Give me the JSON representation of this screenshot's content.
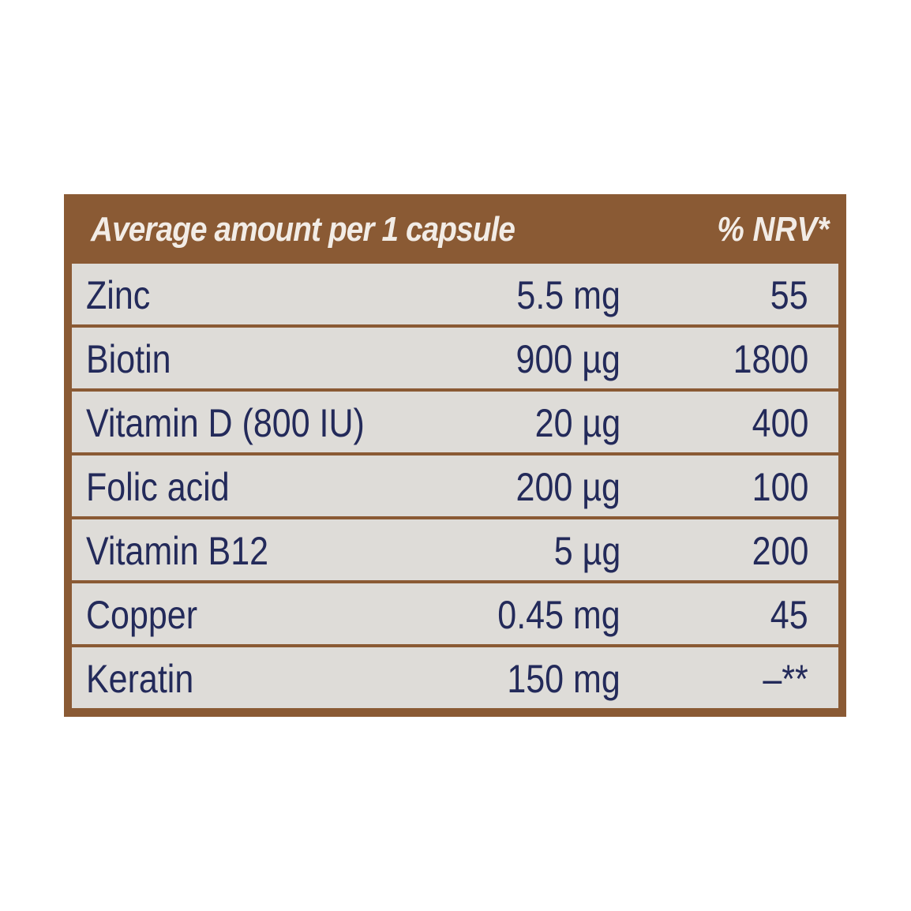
{
  "table": {
    "header": {
      "amount_label": "Average amount per 1 capsule",
      "nrv_label": "% NRV*"
    },
    "rows": [
      {
        "name": "Zinc",
        "amount": "5.5 mg",
        "nrv": "55"
      },
      {
        "name": "Biotin",
        "amount": "900 µg",
        "nrv": "1800"
      },
      {
        "name": "Vitamin D (800 IU)",
        "amount": "20 µg",
        "nrv": "400"
      },
      {
        "name": "Folic acid",
        "amount": "200 µg",
        "nrv": "100"
      },
      {
        "name": "Vitamin B12",
        "amount": "5 µg",
        "nrv": "200"
      },
      {
        "name": "Copper",
        "amount": "0.45 mg",
        "nrv": "45"
      },
      {
        "name": "Keratin",
        "amount": "150 mg",
        "nrv": "–**"
      }
    ]
  },
  "colors": {
    "panel_brown": "#8a5a34",
    "row_background": "#dedcd8",
    "text_navy": "#232a5a",
    "header_text": "#f2ece6"
  }
}
